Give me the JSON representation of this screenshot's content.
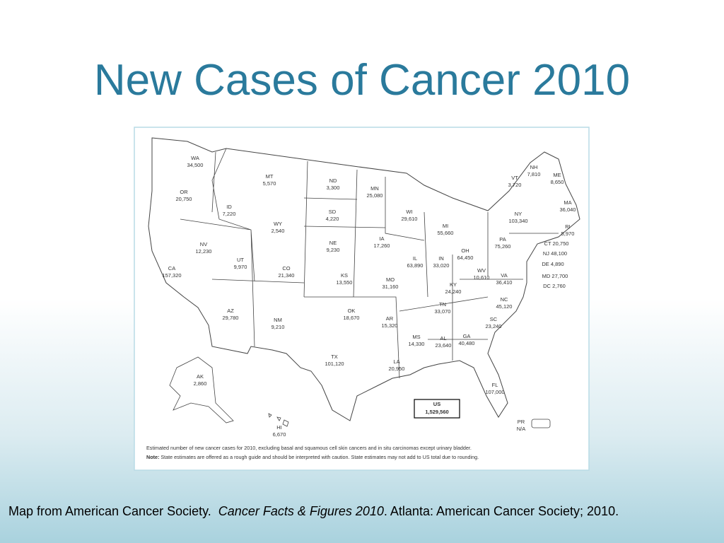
{
  "title": "New Cases of Cancer 2010",
  "states": [
    {
      "abbr": "WA",
      "value": "34,500"
    },
    {
      "abbr": "OR",
      "value": "20,750"
    },
    {
      "abbr": "ID",
      "value": "7,220"
    },
    {
      "abbr": "MT",
      "value": "5,570"
    },
    {
      "abbr": "WY",
      "value": "2,540"
    },
    {
      "abbr": "ND",
      "value": "3,300"
    },
    {
      "abbr": "SD",
      "value": "4,220"
    },
    {
      "abbr": "MN",
      "value": "25,080"
    },
    {
      "abbr": "WI",
      "value": "29,610"
    },
    {
      "abbr": "MI",
      "value": "55,660"
    },
    {
      "abbr": "NV",
      "value": "12,230"
    },
    {
      "abbr": "UT",
      "value": "9,970"
    },
    {
      "abbr": "CO",
      "value": "21,340"
    },
    {
      "abbr": "NE",
      "value": "9,230"
    },
    {
      "abbr": "IA",
      "value": "17,260"
    },
    {
      "abbr": "IL",
      "value": "63,890"
    },
    {
      "abbr": "IN",
      "value": "33,020"
    },
    {
      "abbr": "OH",
      "value": "64,450"
    },
    {
      "abbr": "PA",
      "value": "75,260"
    },
    {
      "abbr": "NY",
      "value": "103,340"
    },
    {
      "abbr": "VT",
      "value": "3,720"
    },
    {
      "abbr": "NH",
      "value": "7,810"
    },
    {
      "abbr": "ME",
      "value": "8,650"
    },
    {
      "abbr": "MA",
      "value": "36,040"
    },
    {
      "abbr": "RI",
      "value": "5,970"
    },
    {
      "abbr": "CT",
      "value": "20,750"
    },
    {
      "abbr": "NJ",
      "value": "48,100"
    },
    {
      "abbr": "DE",
      "value": "4,890"
    },
    {
      "abbr": "MD",
      "value": "27,700"
    },
    {
      "abbr": "DC",
      "value": "2,760"
    },
    {
      "abbr": "CA",
      "value": "157,320"
    },
    {
      "abbr": "KS",
      "value": "13,550"
    },
    {
      "abbr": "MO",
      "value": "31,160"
    },
    {
      "abbr": "KY",
      "value": "24,240"
    },
    {
      "abbr": "WV",
      "value": "10,610"
    },
    {
      "abbr": "VA",
      "value": "36,410"
    },
    {
      "abbr": "AZ",
      "value": "29,780"
    },
    {
      "abbr": "NM",
      "value": "9,210"
    },
    {
      "abbr": "OK",
      "value": "18,670"
    },
    {
      "abbr": "AR",
      "value": "15,320"
    },
    {
      "abbr": "TN",
      "value": "33,070"
    },
    {
      "abbr": "NC",
      "value": "45,120"
    },
    {
      "abbr": "SC",
      "value": "23,240"
    },
    {
      "abbr": "MS",
      "value": "14,330"
    },
    {
      "abbr": "AL",
      "value": "23,640"
    },
    {
      "abbr": "GA",
      "value": "40,480"
    },
    {
      "abbr": "TX",
      "value": "101,120"
    },
    {
      "abbr": "LA",
      "value": "20,950"
    },
    {
      "abbr": "FL",
      "value": "107,000"
    },
    {
      "abbr": "AK",
      "value": "2,860"
    },
    {
      "abbr": "HI",
      "value": "6,670"
    },
    {
      "abbr": "PR",
      "value": "N/A"
    }
  ],
  "total": {
    "abbr": "US",
    "value": "1,529,560"
  },
  "notes": {
    "line1": "Estimated number of new cancer cases for 2010, excluding basal and squamous cell skin cancers and in situ carcinomas except urinary bladder.",
    "note_label": "Note:",
    "line2": "State estimates are offered as a rough guide and should be interpreted with caution. State estimates may not add to US total due to rounding."
  },
  "citation": {
    "before": "Map from American Cancer Society.",
    "italic": "Cancer Facts & Figures 2010",
    "after": ".  Atlanta:  American Cancer Society; 2010."
  }
}
